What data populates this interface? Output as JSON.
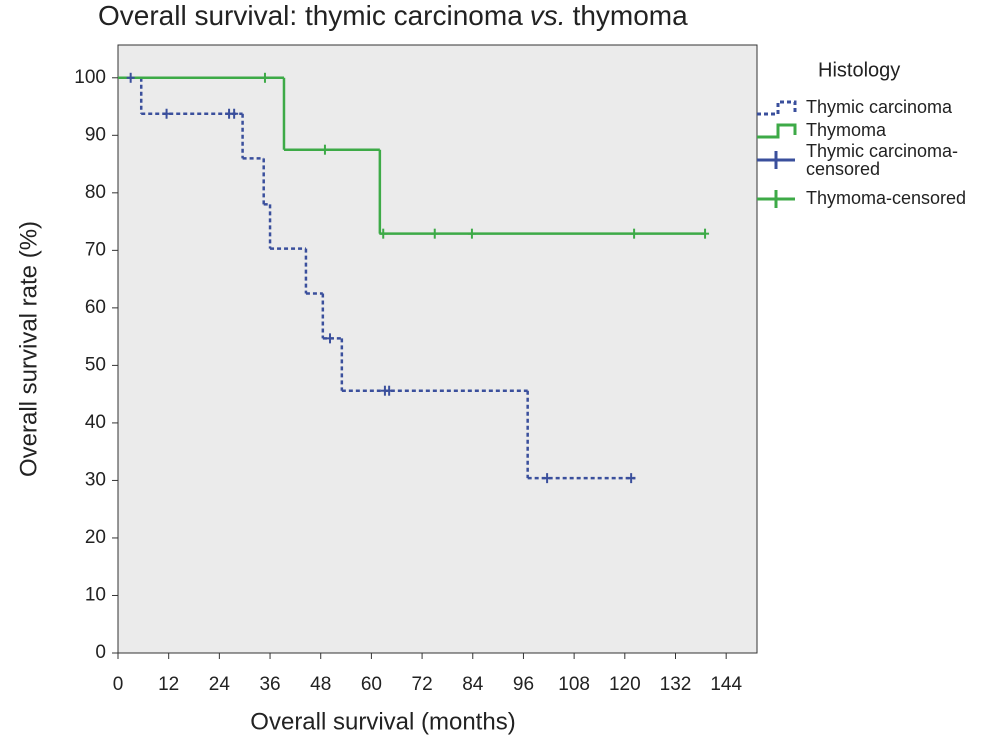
{
  "chart_data": {
    "type": "kaplan-meier",
    "title": [
      "Overall survival: thymic carcinoma",
      "vs.",
      "thymoma"
    ],
    "x_label": "Overall survival (months)",
    "y_label": "Overall survival rate (%)",
    "legend_title": "Histology",
    "xlim": [
      0,
      151.3
    ],
    "ylim": [
      0,
      105.7
    ],
    "xticks": [
      0,
      12,
      24,
      36,
      48,
      60,
      72,
      84,
      96,
      108,
      120,
      132,
      144
    ],
    "yticks": [
      0,
      10,
      20,
      30,
      40,
      50,
      60,
      70,
      80,
      90,
      100
    ],
    "plot_background": "#ebebeb",
    "series": [
      {
        "name": "Thymic carcinoma",
        "kind": "step",
        "color": "#3a4f9c",
        "dashed": true,
        "x": [
          0,
          5.5,
          29.5,
          34.5,
          36,
          44.5,
          48.5,
          53,
          97,
          122.5
        ],
        "values": [
          100,
          93.75,
          86,
          78,
          70.3,
          62.5,
          54.7,
          45.6,
          30.4,
          30.4
        ]
      },
      {
        "name": "Thymoma",
        "kind": "step",
        "color": "#3daa47",
        "dashed": false,
        "x": [
          0,
          39.3,
          62,
          139
        ],
        "values": [
          100,
          87.5,
          72.9,
          72.9
        ]
      },
      {
        "name": "Thymic carcinoma-censored",
        "kind": "censored",
        "color": "#3a4f9c",
        "x": [
          3,
          11.5,
          26.3,
          27.5,
          50.2,
          63.2,
          64.2,
          101.6,
          121.5
        ],
        "values": [
          100,
          93.75,
          93.75,
          93.75,
          54.7,
          45.6,
          45.6,
          30.4,
          30.4
        ]
      },
      {
        "name": "Thymoma-censored",
        "kind": "censored",
        "color": "#3daa47",
        "x": [
          34.8,
          49,
          62.8,
          75,
          83.8,
          122.2,
          139
        ],
        "values": [
          100,
          87.5,
          72.9,
          72.9,
          72.9,
          72.9,
          72.9
        ]
      }
    ]
  }
}
